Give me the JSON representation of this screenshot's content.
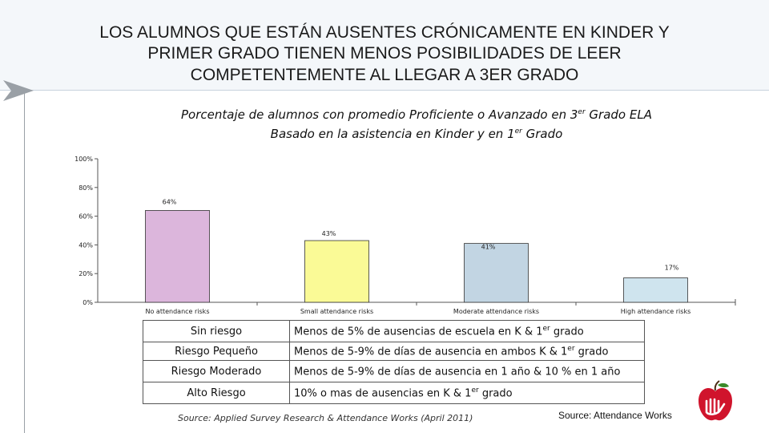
{
  "slide": {
    "title_lines": [
      "LOS ALUMNOS QUE ESTÁN AUSENTES CRÓNICAMENTE EN KINDER Y",
      "PRIMER GRADO TIENEN MENOS POSIBILIDADES DE LEER",
      "COMPETENTEMENTE AL LLEGAR A 3ER GRADO"
    ]
  },
  "chart_data": {
    "type": "bar",
    "title_line1": {
      "before": "Porcentaje de alumnos con promedio Proficiente o Avanzado en 3",
      "sup": "er",
      "after": " Grado ELA"
    },
    "title_line2": {
      "before": "Basado en la asistencia en Kinder y en 1",
      "sup": "er",
      "after": " Grado"
    },
    "categories": [
      "No attendance risks",
      "Small attendance risks",
      "Moderate attendance risks",
      "High attendance risks"
    ],
    "values": [
      64,
      43,
      41,
      17
    ],
    "value_labels": [
      "64%",
      "43%",
      "41%",
      "17%"
    ],
    "bar_colors": [
      "#dcb6dc",
      "#fafa96",
      "#c2d5e3",
      "#cfe4ee"
    ],
    "y_ticks": [
      0,
      20,
      40,
      60,
      80,
      100
    ],
    "y_tick_labels": [
      "0%",
      "20%",
      "40%",
      "60%",
      "80%",
      "100%"
    ],
    "ylim": [
      0,
      100
    ],
    "grid": false,
    "xlabel": "",
    "ylabel": ""
  },
  "legend_table": [
    {
      "risk": "Sin riesgo",
      "desc": {
        "before": "Menos de 5% de ausencias de escuela en K & 1",
        "sup": "er",
        "after": " grado"
      }
    },
    {
      "risk": "Riesgo Pequeño",
      "desc": {
        "before": "Menos de 5-9% de días de ausencia en ambos K & 1",
        "sup": "er",
        "after": " grado"
      }
    },
    {
      "risk": "Riesgo Moderado",
      "desc": {
        "before": "Menos de  5-9% de días de ausencia en 1 año & 10 % en 1 año",
        "sup": "",
        "after": ""
      }
    },
    {
      "risk": "Alto Riesgo",
      "desc": {
        "before": "10% o mas de ausencias en K & 1",
        "sup": "er",
        "after": " grado"
      }
    }
  ],
  "sources": {
    "left": "Source: Applied Survey Research & Attendance Works (April 2011)",
    "right": "Source: Attendance Works"
  },
  "colors": {
    "accent": "#c8102e",
    "axis": "#555555"
  }
}
